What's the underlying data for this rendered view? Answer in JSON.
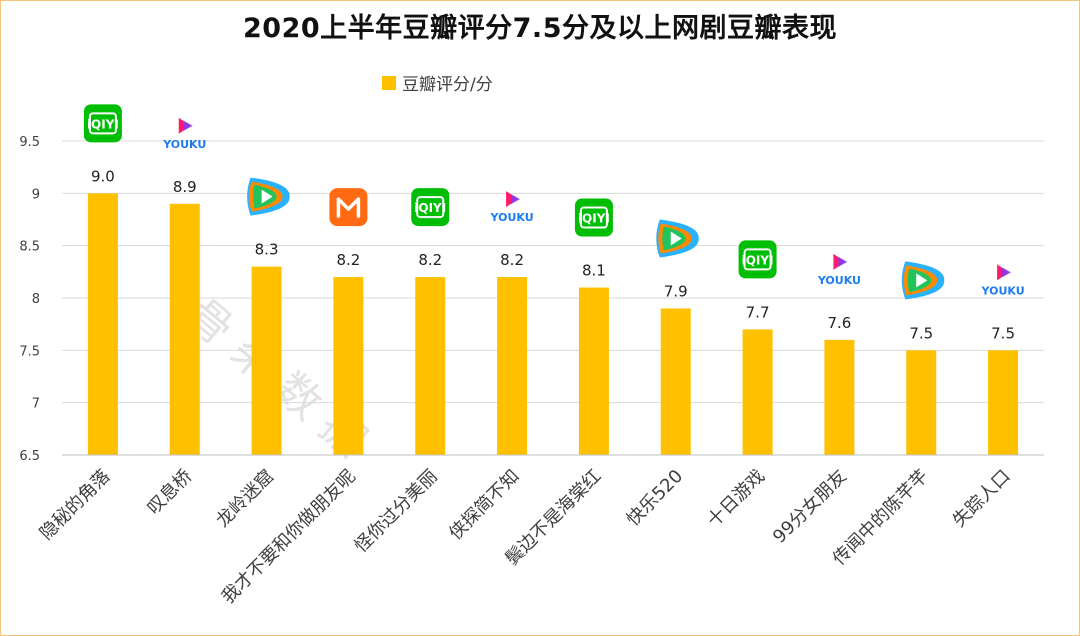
{
  "chart_data": {
    "type": "bar",
    "title": "2020上半年豆瓣评分7.5分及以上网剧豆瓣表现",
    "legend": [
      "豆瓣评分/分"
    ],
    "categories": [
      "隐秘的角落",
      "叹息桥",
      "龙岭迷窟",
      "我才不要和你做朋友呢",
      "怪你过分美丽",
      "侠探简不知",
      "鬓边不是海棠红",
      "快乐520",
      "十日游戏",
      "99分女朋友",
      "传闻中的陈芊芊",
      "失踪人口"
    ],
    "series": [
      {
        "name": "豆瓣评分/分",
        "values": [
          9.0,
          8.9,
          8.3,
          8.2,
          8.2,
          8.2,
          8.1,
          7.9,
          7.7,
          7.6,
          7.5,
          7.5
        ]
      }
    ],
    "data_labels": [
      "9.0",
      "8.9",
      "8.3",
      "8.2",
      "8.2",
      "8.2",
      "8.1",
      "7.9",
      "7.7",
      "7.6",
      "7.5",
      "7.5"
    ],
    "platforms": [
      "iqiyi",
      "youku",
      "tencent",
      "mgtv",
      "iqiyi",
      "youku",
      "iqiyi",
      "tencent",
      "iqiyi",
      "youku",
      "tencent",
      "youku"
    ],
    "ylim": [
      6.5,
      9.5
    ],
    "yticks": [
      "6.5",
      "7",
      "7.5",
      "8",
      "8.5",
      "9",
      "9.5"
    ],
    "grid": true,
    "legend_position": "top-center",
    "bar_color": "#ffc000"
  },
  "logo_text": {
    "iqiyi": "iQIYI",
    "youku": "YOUKU"
  },
  "watermark": "骨朵数据"
}
